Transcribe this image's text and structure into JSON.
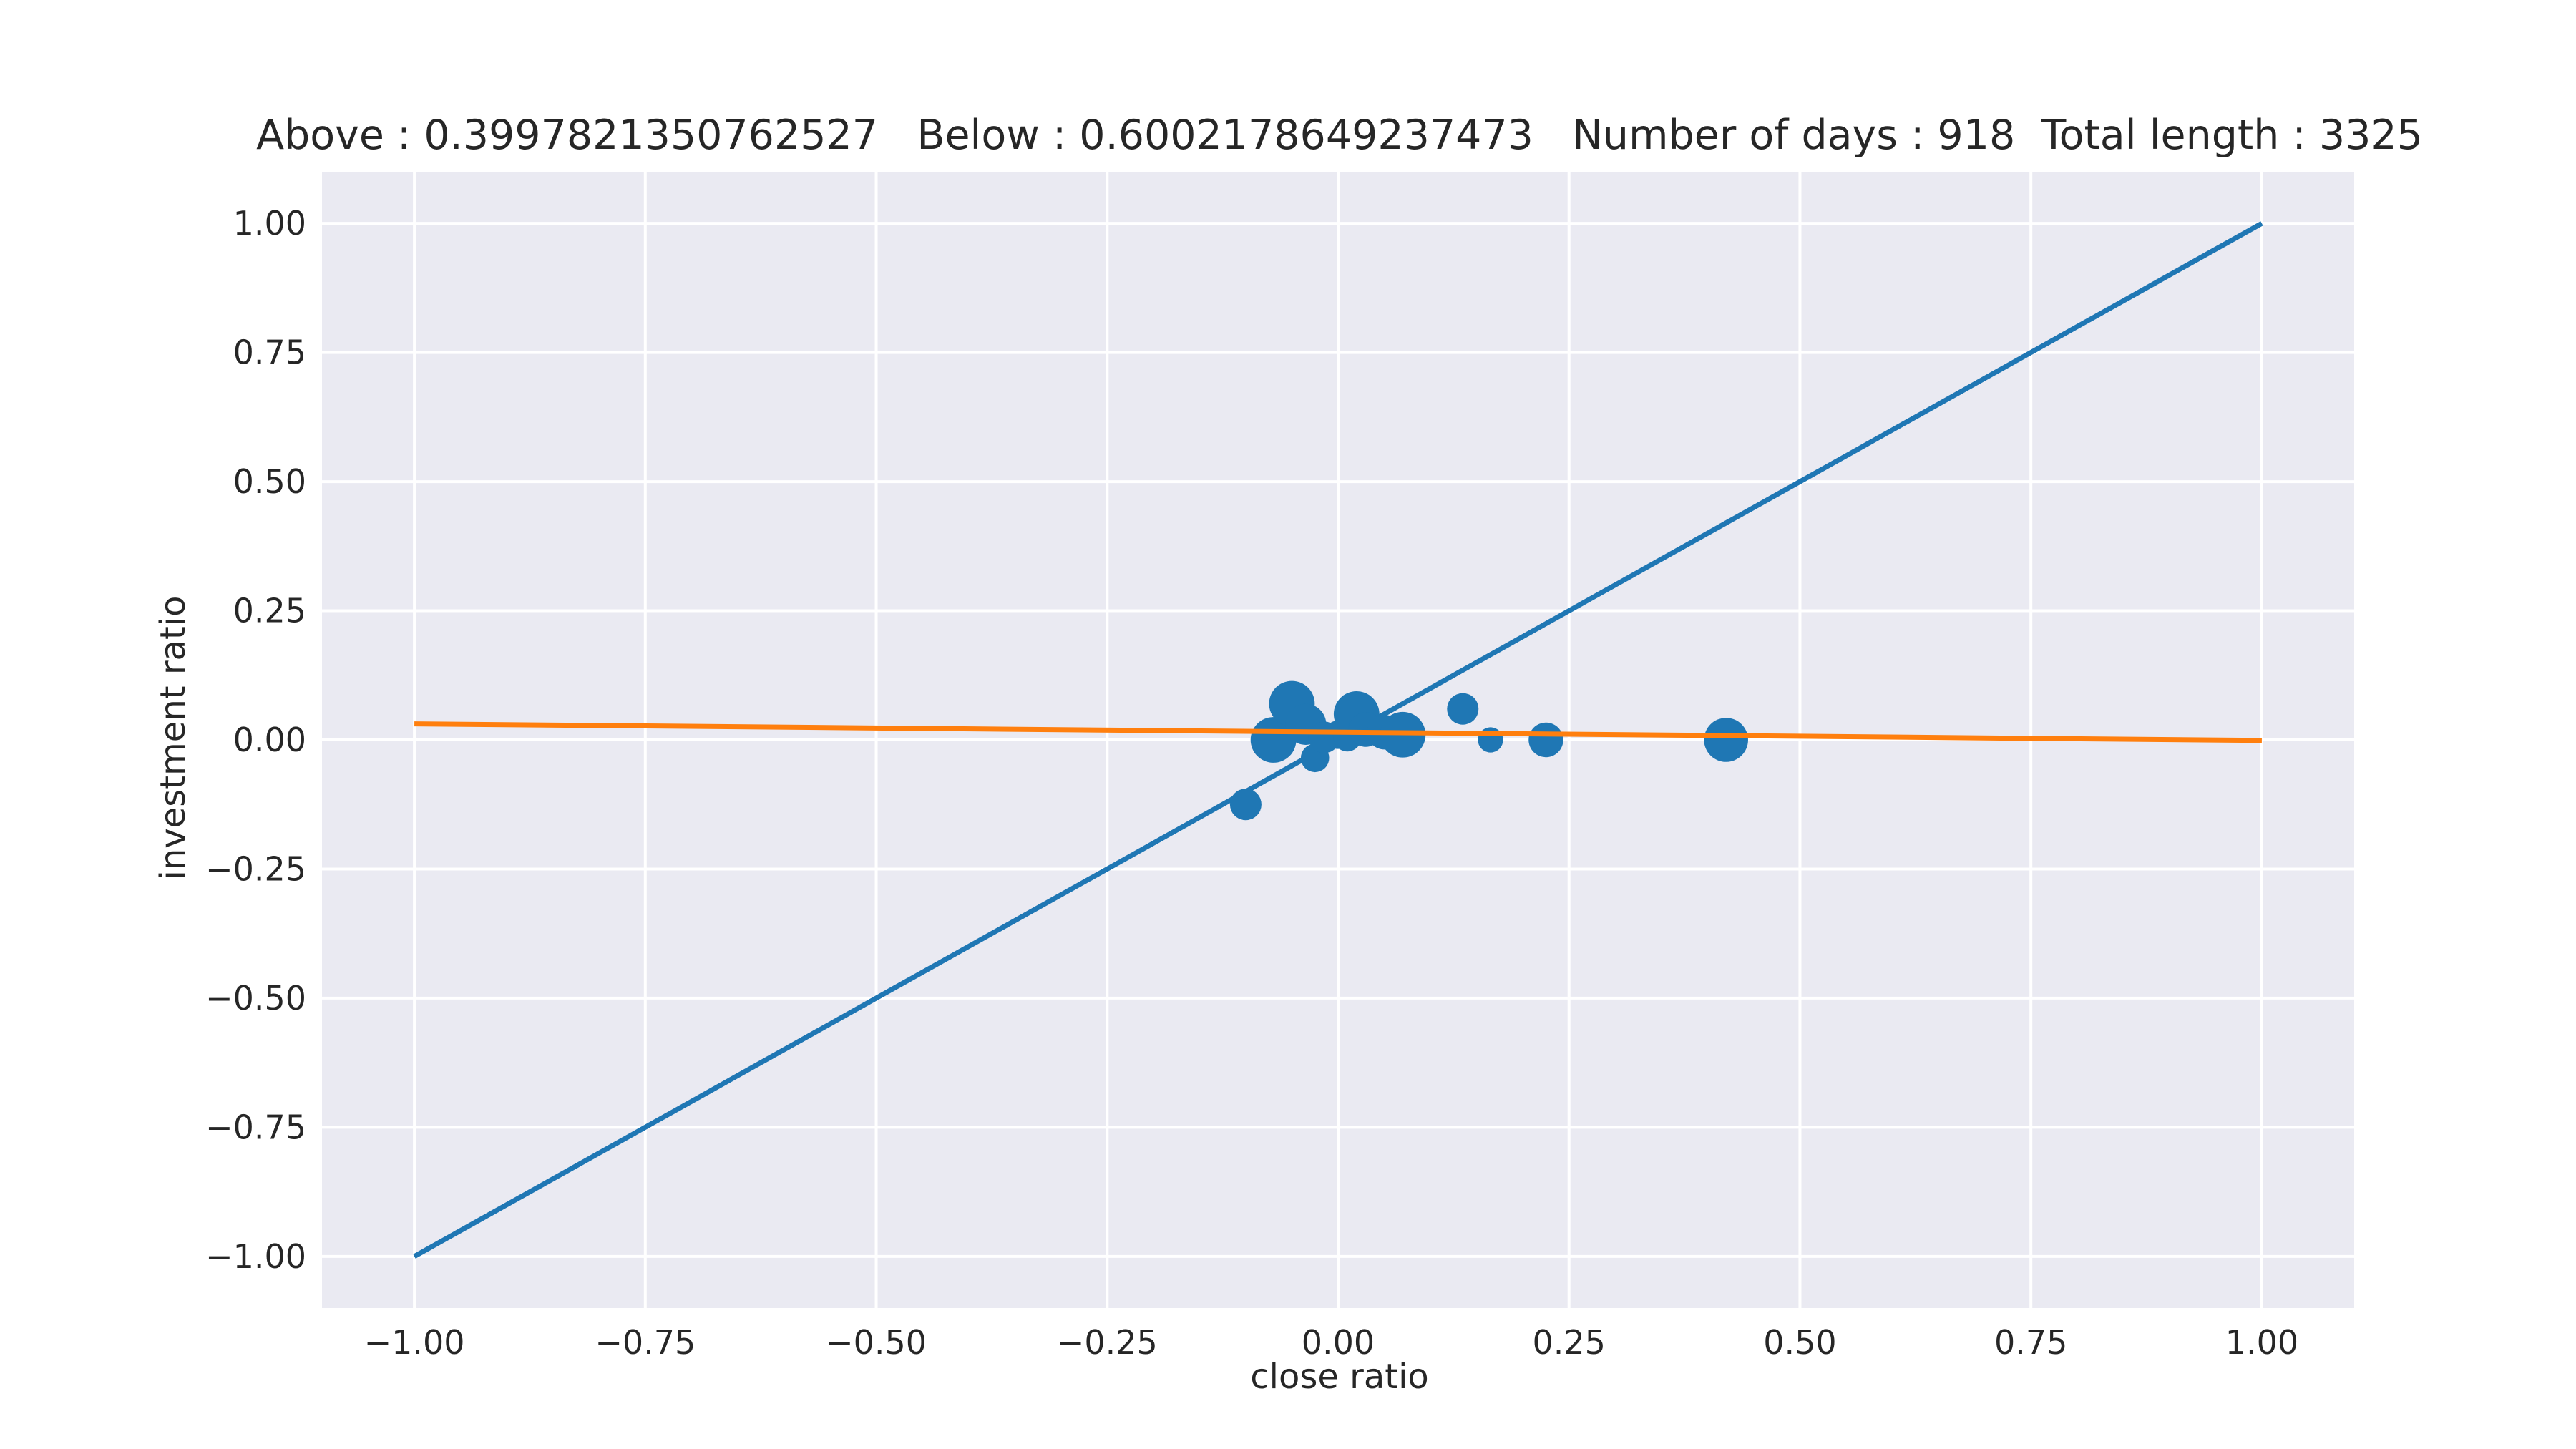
{
  "chart_data": {
    "type": "scatter",
    "title": "Above : 0.3997821350762527   Below : 0.6002178649237473   Number of days : 918  Total length : 3325",
    "xlabel": "close ratio",
    "ylabel": "investment ratio",
    "xlim": [
      -1.1,
      1.1
    ],
    "ylim": [
      -1.1,
      1.1
    ],
    "xticks": [
      -1.0,
      -0.75,
      -0.5,
      -0.25,
      0.0,
      0.25,
      0.5,
      0.75,
      1.0
    ],
    "xtick_labels": [
      "−1.00",
      "−0.75",
      "−0.50",
      "−0.25",
      "0.00",
      "0.25",
      "0.50",
      "0.75",
      "1.00"
    ],
    "yticks": [
      -1.0,
      -0.75,
      -0.5,
      -0.25,
      0.0,
      0.25,
      0.5,
      0.75,
      1.0
    ],
    "ytick_labels": [
      "−1.00",
      "−0.75",
      "−0.50",
      "−0.25",
      "0.00",
      "0.25",
      "0.50",
      "0.75",
      "1.00"
    ],
    "grid": true,
    "colors": {
      "background": "#eaeaf2",
      "grid": "#ffffff",
      "points": "#1f77b4",
      "identity_line": "#1f77b4",
      "fit_line": "#ff7f0e"
    },
    "series": [
      {
        "kind": "line",
        "color": "#1f77b4",
        "x": [
          -1.0,
          1.0
        ],
        "y": [
          -1.0,
          1.0
        ]
      },
      {
        "kind": "line",
        "color": "#ff7f0e",
        "x": [
          -1.0,
          1.0
        ],
        "y": [
          0.031,
          -0.001
        ]
      },
      {
        "kind": "scatter",
        "color": "#1f77b4",
        "points": [
          {
            "x": -0.1,
            "y": -0.125,
            "s": 1.0
          },
          {
            "x": -0.07,
            "y": 0.0,
            "s": 1.45
          },
          {
            "x": -0.05,
            "y": 0.07,
            "s": 1.45
          },
          {
            "x": -0.035,
            "y": 0.03,
            "s": 1.3
          },
          {
            "x": -0.025,
            "y": -0.035,
            "s": 0.9
          },
          {
            "x": -0.015,
            "y": 0.005,
            "s": 1.0
          },
          {
            "x": 0.0,
            "y": 0.01,
            "s": 0.9
          },
          {
            "x": 0.01,
            "y": 0.005,
            "s": 0.9
          },
          {
            "x": 0.02,
            "y": 0.05,
            "s": 1.45
          },
          {
            "x": 0.03,
            "y": 0.02,
            "s": 1.1
          },
          {
            "x": 0.05,
            "y": 0.015,
            "s": 1.1
          },
          {
            "x": 0.07,
            "y": 0.01,
            "s": 1.45
          },
          {
            "x": 0.135,
            "y": 0.06,
            "s": 1.0
          },
          {
            "x": 0.165,
            "y": 0.0,
            "s": 0.8
          },
          {
            "x": 0.225,
            "y": 0.0,
            "s": 1.1
          },
          {
            "x": 0.42,
            "y": 0.0,
            "s": 1.4
          }
        ]
      }
    ]
  }
}
